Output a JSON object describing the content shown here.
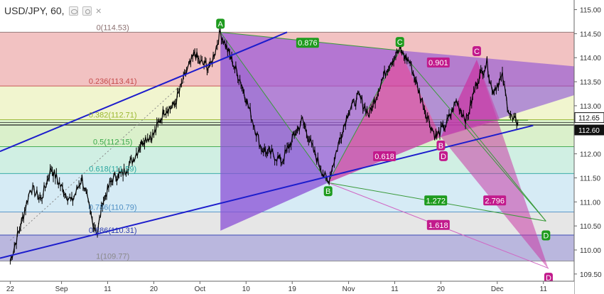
{
  "legend": {
    "symbol": "USD/JPY, 60,"
  },
  "chart_data": {
    "type": "line",
    "instrument": "USD/JPY",
    "timeframe": "60",
    "x_ticks": [
      {
        "label": "22",
        "i": 0
      },
      {
        "label": "Sep",
        "i": 10
      },
      {
        "label": "11",
        "i": 19
      },
      {
        "label": "20",
        "i": 28
      },
      {
        "label": "Oct",
        "i": 37
      },
      {
        "label": "10",
        "i": 46
      },
      {
        "label": "19",
        "i": 55
      },
      {
        "label": "Nov",
        "i": 66
      },
      {
        "label": "11",
        "i": 75
      },
      {
        "label": "20",
        "i": 84
      },
      {
        "label": "Dec",
        "i": 95
      },
      {
        "label": "11",
        "i": 104
      }
    ],
    "x_range": [
      -2,
      110
    ],
    "y_ticks": [
      109.5,
      110.0,
      110.5,
      111.0,
      111.5,
      112.0,
      112.5,
      113.0,
      113.5,
      114.0,
      114.5,
      115.0
    ],
    "ylim": [
      109.35,
      115.2
    ],
    "price_path": [
      [
        0,
        109.78
      ],
      [
        2,
        110.5
      ],
      [
        4,
        111.3
      ],
      [
        6,
        111.05
      ],
      [
        8,
        111.7
      ],
      [
        10,
        111.3
      ],
      [
        12,
        111.0
      ],
      [
        14,
        111.5
      ],
      [
        16,
        110.6
      ],
      [
        17,
        110.35
      ],
      [
        18,
        111.0
      ],
      [
        20,
        111.5
      ],
      [
        22,
        111.6
      ],
      [
        24,
        111.9
      ],
      [
        26,
        112.3
      ],
      [
        28,
        112.4
      ],
      [
        30,
        112.9
      ],
      [
        32,
        113.0
      ],
      [
        34,
        113.6
      ],
      [
        36,
        114.1
      ],
      [
        37,
        113.9
      ],
      [
        39,
        113.8
      ],
      [
        41,
        114.53
      ],
      [
        43,
        114.0
      ],
      [
        45,
        113.5
      ],
      [
        47,
        112.8
      ],
      [
        49,
        112.1
      ],
      [
        51,
        112.0
      ],
      [
        53,
        111.85
      ],
      [
        55,
        112.3
      ],
      [
        57,
        112.7
      ],
      [
        59,
        112.1
      ],
      [
        61,
        111.6
      ],
      [
        62,
        111.4
      ],
      [
        64,
        112.2
      ],
      [
        66,
        112.9
      ],
      [
        68,
        113.2
      ],
      [
        70,
        112.8
      ],
      [
        72,
        113.4
      ],
      [
        74,
        113.9
      ],
      [
        76,
        114.15
      ],
      [
        78,
        113.9
      ],
      [
        80,
        113.2
      ],
      [
        82,
        112.6
      ],
      [
        83,
        112.35
      ],
      [
        85,
        112.6
      ],
      [
        87,
        113.1
      ],
      [
        89,
        112.7
      ],
      [
        91,
        113.5
      ],
      [
        93,
        113.9
      ],
      [
        94,
        113.3
      ],
      [
        96,
        113.6
      ],
      [
        97,
        113.0
      ],
      [
        98,
        112.7
      ],
      [
        99,
        112.65
      ]
    ],
    "current_price_labels": [
      112.65,
      112.6
    ],
    "fibonacci": [
      {
        "level": "0",
        "price": 114.53,
        "label": "0(114.53)",
        "color": "#8b7070",
        "fill": "#f0b7b7"
      },
      {
        "level": "0.236",
        "price": 113.41,
        "label": "0.236(113.41)",
        "color": "#c44a4a",
        "fill": "#eef3c7"
      },
      {
        "level": "0.382",
        "price": 112.71,
        "label": "0.382(112.71)",
        "color": "#9ab831",
        "fill": "#d4edc2"
      },
      {
        "level": "0.5",
        "price": 112.15,
        "label": "0.5(112.15)",
        "color": "#39a84a",
        "fill": "#c8ecde"
      },
      {
        "level": "0.618",
        "price": 111.59,
        "label": "0.618(111.59)",
        "color": "#2aa6a0",
        "fill": "#cfe7f3"
      },
      {
        "level": "0.786",
        "price": 110.79,
        "label": "0.786(110.79)",
        "color": "#4f8fc4",
        "fill": "#e2e2e2"
      },
      {
        "level": "0.886",
        "price": 110.31,
        "label": "0.886(110.31)",
        "color": "#2c3fb0",
        "fill": "#aeaad8"
      },
      {
        "level": "1",
        "price": 109.77,
        "label": "1(109.77)",
        "color": "#8a8a8a",
        "fill": null
      }
    ],
    "channel_lines": [
      {
        "from": [
          -2,
          112.05
        ],
        "to": [
          54,
          114.53
        ],
        "color": "#1c1ccc"
      },
      {
        "from": [
          -2,
          109.83
        ],
        "to": [
          102,
          112.59
        ],
        "color": "#1c1ccc"
      }
    ],
    "pattern_points": [
      {
        "label": "A",
        "i": 41,
        "price": 114.53,
        "color": "#1e9b1e",
        "pos": "above"
      },
      {
        "label": "B",
        "i": 62,
        "price": 111.4,
        "color": "#1e9b1e",
        "pos": "below"
      },
      {
        "label": "C",
        "i": 76,
        "price": 114.15,
        "color": "#1e9b1e",
        "pos": "above"
      },
      {
        "label": "C",
        "i": 91,
        "price": 113.96,
        "color": "#c21a8c",
        "pos": "above"
      },
      {
        "label": "B",
        "i": 84,
        "price": 112.35,
        "color": "#c21a8c",
        "pos": "below"
      },
      {
        "label": "D",
        "i": 84.5,
        "price": 112.13,
        "color": "#c21a8c",
        "pos": "below"
      },
      {
        "label": "D",
        "i": 104.5,
        "price": 110.48,
        "color": "#1e9b1e",
        "pos": "below"
      },
      {
        "label": "D",
        "i": 105,
        "price": 109.6,
        "color": "#c21a8c",
        "pos": "below"
      }
    ],
    "ratio_labels": [
      {
        "text": "0.876",
        "i": 58,
        "price": 114.31,
        "color": "#1e9b1e"
      },
      {
        "text": "0.901",
        "i": 83.5,
        "price": 113.9,
        "color": "#c21a8c"
      },
      {
        "text": "0.618",
        "i": 73,
        "price": 111.95,
        "color": "#c21a8c"
      },
      {
        "text": "1.272",
        "i": 83,
        "price": 111.03,
        "color": "#1e9b1e"
      },
      {
        "text": "2.796",
        "i": 94.5,
        "price": 111.03,
        "color": "#c21a8c"
      },
      {
        "text": "1.618",
        "i": 83.5,
        "price": 110.52,
        "color": "#c21a8c"
      }
    ],
    "colors": {
      "candle": "#000000",
      "harmonic_purple": "#8a4fd6",
      "harmonic_magenta": "#c93aa6",
      "green_line": "#3a9a3a",
      "pink_line": "#d066c4",
      "price_tag_fill": "#ffffff",
      "price_tag_dark": "#111111"
    }
  }
}
